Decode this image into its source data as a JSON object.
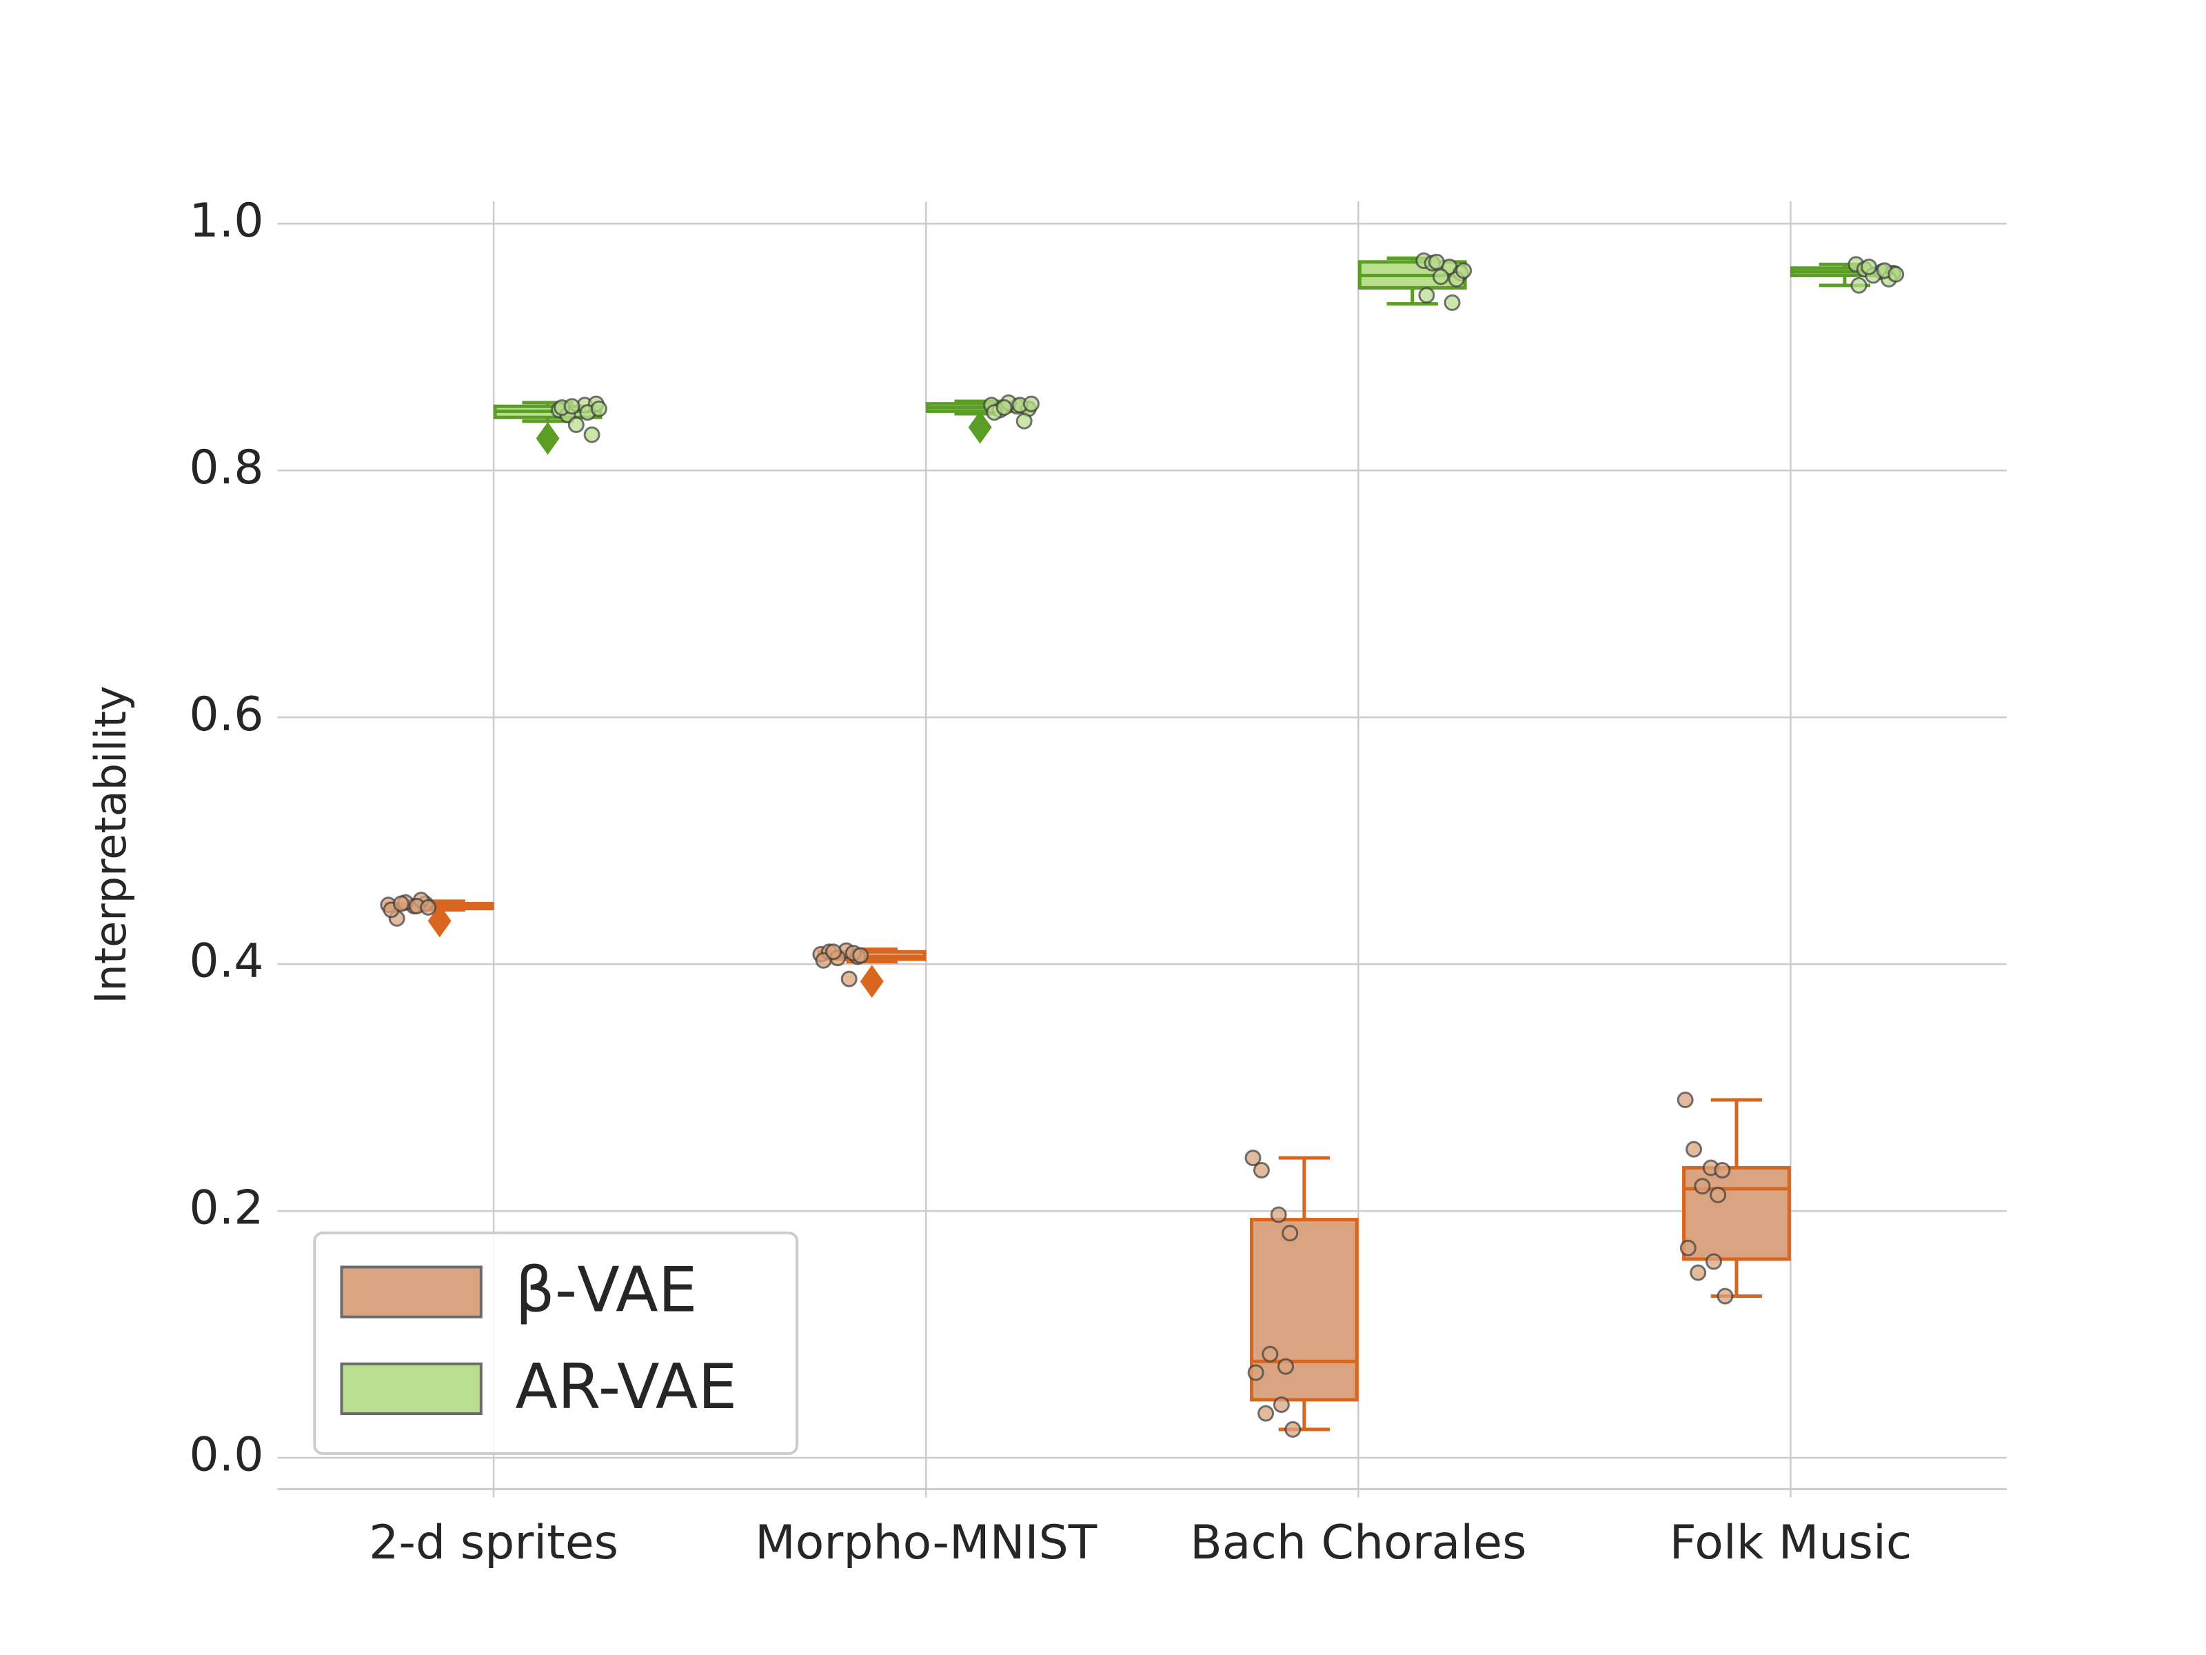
{
  "chart_data": {
    "type": "box",
    "y_label": "Interpretability",
    "categories": [
      "2-d sprites",
      "Morpho-MNIST",
      "Bach Chorales",
      "Folk Music"
    ],
    "ylim": [
      -0.0254,
      1.018
    ],
    "yticks": [
      {
        "value": 0,
        "label": "0.0"
      },
      0.2,
      0.4,
      0.6,
      0.8,
      {
        "value": 1,
        "label": "1.0"
      }
    ],
    "grid": true,
    "legend_position": "lower left",
    "series": [
      {
        "name": "β-VAE",
        "color": "#d9a47f",
        "edge_color": "#d9661f",
        "boxes": [
          {
            "q1": 0.445,
            "median": 0.447,
            "q3": 0.449,
            "whislo": 0.444,
            "whishi": 0.451,
            "fliers": [
              0.435
            ]
          },
          {
            "q1": 0.404,
            "median": 0.406,
            "q3": 0.41,
            "whislo": 0.402,
            "whishi": 0.412,
            "fliers": [
              0.386
            ]
          },
          {
            "q1": 0.047,
            "median": 0.078,
            "q3": 0.193,
            "whislo": 0.023,
            "whishi": 0.243,
            "fliers": []
          },
          {
            "q1": 0.161,
            "median": 0.218,
            "q3": 0.235,
            "whislo": 0.131,
            "whishi": 0.29,
            "fliers": []
          }
        ],
        "points": [
          [
            0.448,
            0.437,
            0.447,
            0.449,
            0.45,
            0.452,
            0.444,
            0.447,
            0.449,
            0.446
          ],
          [
            0.408,
            0.41,
            0.411,
            0.406,
            0.405,
            0.409,
            0.403,
            0.388,
            0.41,
            0.407
          ],
          [
            0.243,
            0.233,
            0.197,
            0.182,
            0.084,
            0.074,
            0.069,
            0.043,
            0.036,
            0.023
          ],
          [
            0.29,
            0.25,
            0.235,
            0.233,
            0.22,
            0.213,
            0.17,
            0.159,
            0.15,
            0.131
          ]
        ]
      },
      {
        "name": "AR-VAE",
        "color": "#b9de8d",
        "edge_color": "#5a9e25",
        "boxes": [
          {
            "q1": 0.843,
            "median": 0.848,
            "q3": 0.852,
            "whislo": 0.84,
            "whishi": 0.855,
            "fliers": [
              0.826
            ]
          },
          {
            "q1": 0.848,
            "median": 0.851,
            "q3": 0.854,
            "whislo": 0.846,
            "whishi": 0.856,
            "fliers": [
              0.835
            ]
          },
          {
            "q1": 0.948,
            "median": 0.958,
            "q3": 0.969,
            "whislo": 0.935,
            "whishi": 0.972,
            "fliers": []
          },
          {
            "q1": 0.958,
            "median": 0.961,
            "q3": 0.964,
            "whislo": 0.95,
            "whishi": 0.967,
            "fliers": []
          }
        ],
        "points": [
          [
            0.849,
            0.845,
            0.853,
            0.854,
            0.837,
            0.829,
            0.851,
            0.847,
            0.852,
            0.85
          ],
          [
            0.853,
            0.849,
            0.852,
            0.85,
            0.855,
            0.84,
            0.847,
            0.853,
            0.851,
            0.854
          ],
          [
            0.97,
            0.968,
            0.965,
            0.96,
            0.957,
            0.955,
            0.942,
            0.936,
            0.969,
            0.962
          ],
          [
            0.967,
            0.963,
            0.961,
            0.96,
            0.958,
            0.955,
            0.95,
            0.962,
            0.965,
            0.959
          ]
        ]
      }
    ]
  }
}
